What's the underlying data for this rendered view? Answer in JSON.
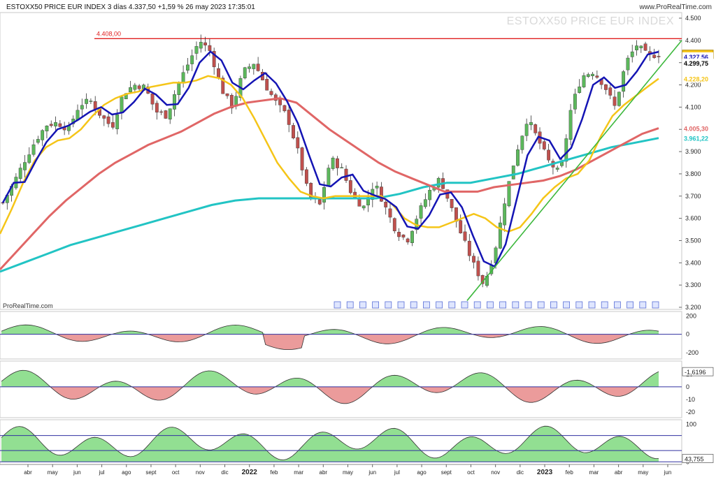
{
  "header": {
    "title": "ESTOXX50 PRICE EUR INDEX 3 días 4.337,50 +1,59 % 26 may 2023 17:35:01",
    "logo": "www.ProRealTime.com"
  },
  "watermark": "ESTOXX50 PRICE EUR INDEX",
  "branding": "ProRealTime.com",
  "colors": {
    "candle_up": "#5cb85c",
    "candle_down": "#c0504d",
    "fast_ma": "#1414b4",
    "ma_yellow": "#f5c518",
    "ma_red": "#e06666",
    "ma_cyan": "#22c4c4",
    "resistance": "#e02020",
    "trendline": "#3db83d",
    "osc_pos": "#7fd97f",
    "osc_neg": "#e88a8a"
  },
  "chart_data": [
    {
      "type": "candlestick",
      "title": "ESTOXX50 PRICE EUR INDEX",
      "y_ticks": [
        "4.500",
        "4.400",
        "4.300",
        "4.200",
        "4.100",
        "4.000",
        "3.900",
        "3.800",
        "3.700",
        "3.600",
        "3.500",
        "3.400",
        "3.300",
        "3.200"
      ],
      "ylim": [
        3200,
        4500
      ],
      "x_ticks": [
        "abr",
        "may",
        "jun",
        "jul",
        "ago",
        "sept",
        "oct",
        "nov",
        "dic",
        "2022",
        "feb",
        "mar",
        "abr",
        "may",
        "jun",
        "jul",
        "ago",
        "sept",
        "oct",
        "nov",
        "dic",
        "2023",
        "feb",
        "mar",
        "abr",
        "may",
        "jun"
      ],
      "resistance": {
        "label": "4.408,00",
        "value": 4408
      },
      "price_labels": [
        {
          "text": "4.337,50",
          "value": 4337.5,
          "bg": "#f5c518",
          "color": "#000000"
        },
        {
          "text": "4.327,56",
          "value": 4327.56,
          "bg": "#ffffff",
          "color": "#1414b4"
        },
        {
          "text": "4.299,75",
          "value": 4299.75,
          "bg": "#ffffff",
          "color": "#000000"
        },
        {
          "text": "4.228,20",
          "value": 4228.2,
          "bg": "#ffffff",
          "color": "#f5c518"
        },
        {
          "text": "4.005,30",
          "value": 4005.3,
          "bg": "#ffffff",
          "color": "#e06666"
        },
        {
          "text": "3.961,22",
          "value": 3961.22,
          "bg": "#ffffff",
          "color": "#22c4c4"
        }
      ],
      "close_path": [
        3670,
        3760,
        3860,
        3950,
        4020,
        4030,
        4000,
        4110,
        4130,
        4060,
        4010,
        4160,
        4200,
        4190,
        4080,
        4060,
        4200,
        4300,
        4400,
        4350,
        4180,
        4100,
        4260,
        4300,
        4200,
        4120,
        4060,
        3900,
        3700,
        3660,
        3870,
        3820,
        3700,
        3650,
        3760,
        3650,
        3540,
        3500,
        3620,
        3720,
        3780,
        3650,
        3520,
        3400,
        3300,
        3450,
        3700,
        3900,
        4050,
        3950,
        3850,
        3800,
        4100,
        4240,
        4260,
        4200,
        4100,
        4300,
        4380,
        4330,
        4337
      ],
      "ma_yellow": [
        3530,
        3640,
        3760,
        3860,
        3920,
        3950,
        3960,
        4000,
        4060,
        4110,
        4140,
        4160,
        4170,
        4190,
        4200,
        4210,
        4210,
        4220,
        4240,
        4230,
        4200,
        4140,
        4050,
        3950,
        3850,
        3780,
        3720,
        3700,
        3690,
        3700,
        3700,
        3700,
        3700,
        3700,
        3660,
        3600,
        3570,
        3560,
        3560,
        3580,
        3600,
        3620,
        3600,
        3560,
        3540,
        3560,
        3620,
        3690,
        3740,
        3780,
        3800,
        3860,
        3970,
        4060,
        4110,
        4150,
        4190,
        4228
      ],
      "ma_red": [
        3370,
        3450,
        3530,
        3610,
        3680,
        3740,
        3800,
        3850,
        3890,
        3930,
        3960,
        3990,
        4030,
        4070,
        4100,
        4120,
        4130,
        4140,
        4120,
        4060,
        4000,
        3950,
        3900,
        3850,
        3810,
        3780,
        3750,
        3720,
        3720,
        3720,
        3740,
        3750,
        3760,
        3770,
        3790,
        3820,
        3860,
        3900,
        3940,
        3980,
        4005
      ],
      "ma_cyan": [
        3360,
        3400,
        3440,
        3480,
        3510,
        3540,
        3570,
        3600,
        3630,
        3660,
        3680,
        3690,
        3690,
        3690,
        3690,
        3690,
        3690,
        3710,
        3740,
        3760,
        3760,
        3780,
        3800,
        3830,
        3860,
        3890,
        3920,
        3940,
        3961
      ]
    },
    {
      "type": "area",
      "name": "oscillator-1",
      "y_ticks": [
        "200",
        "0",
        "-200"
      ],
      "ylim": [
        -260,
        240
      ]
    },
    {
      "type": "area",
      "name": "oscillator-2",
      "y_ticks": [
        "10",
        "0",
        "-10",
        "-20"
      ],
      "current_label": "-1,6196",
      "ylim": [
        -24,
        20
      ]
    },
    {
      "type": "area",
      "name": "oscillator-3",
      "y_ticks": [
        "100",
        "0"
      ],
      "current_label": "43,755",
      "ylim": [
        -5,
        110
      ]
    }
  ]
}
